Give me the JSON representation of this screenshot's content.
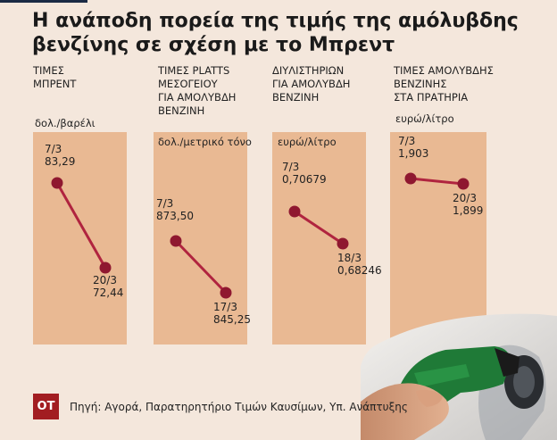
{
  "title": {
    "line1": "Η ανάποδη πορεία της τιμής της αμόλυβδης",
    "line2": "βενζίνης σε σχέση με το Μπρεντ"
  },
  "footer": {
    "logo": "ΟΤ",
    "source": "Πηγή: Αγορά, Παρατηρητήριο Τιμών Καυσίμων, Υπ. Ανάπτυξης"
  },
  "colors": {
    "background": "#f4e7dc",
    "panel": "#e9b993",
    "line": "#b0243f",
    "marker": "#8f1830",
    "logo": "#a21d21"
  },
  "photo_icon": "fuel-nozzle-photo",
  "chart_data": [
    {
      "type": "line",
      "header": [
        "ΤΙΜΕΣ",
        "ΜΠΡΕΝΤ"
      ],
      "unit": "δολ./βαρέλι",
      "points": [
        {
          "date": "7/3",
          "label": "83,29",
          "value": 83.29
        },
        {
          "date": "20/3",
          "label": "72,44",
          "value": 72.44
        }
      ]
    },
    {
      "type": "line",
      "header": [
        "ΤΙΜΕΣ PLATTS",
        "ΜΕΣΟΓΕΙΟΥ",
        "ΓΙΑ ΑΜΟΛΥΒΔΗ",
        "ΒΕΝΖΙΝΗ"
      ],
      "unit": "δολ./μετρικό τόνο",
      "points": [
        {
          "date": "7/3",
          "label": "873,50",
          "value": 873.5
        },
        {
          "date": "17/3",
          "label": "845,25",
          "value": 845.25
        }
      ]
    },
    {
      "type": "line",
      "header": [
        "ΔΙΥΛΙΣΤΗΡΙΩΝ",
        "ΓΙΑ ΑΜΟΛΥΒΔΗ",
        "ΒΕΝΖΙΝΗ"
      ],
      "unit": "ευρώ/λίτρο",
      "points": [
        {
          "date": "7/3",
          "label": "0,70679",
          "value": 0.70679
        },
        {
          "date": "18/3",
          "label": "0,68246",
          "value": 0.68246
        }
      ]
    },
    {
      "type": "line",
      "header": [
        "ΤΙΜΕΣ ΑΜΟΛΥΒΔΗΣ",
        "ΒΕΝΖΙΝΗΣ",
        "ΣΤΑ ΠΡΑΤΗΡΙΑ"
      ],
      "unit": "ευρώ/λίτρο",
      "points": [
        {
          "date": "7/3",
          "label": "1,903",
          "value": 1.903
        },
        {
          "date": "20/3",
          "label": "1,899",
          "value": 1.899
        }
      ]
    }
  ]
}
